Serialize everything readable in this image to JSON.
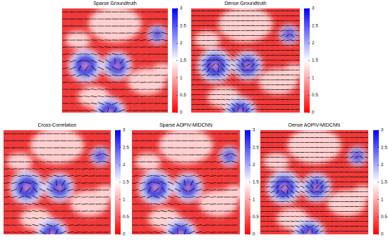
{
  "chart_data": [
    {
      "type": "heatmap",
      "title": "Sparse Groundtruth",
      "clim": [
        0,
        3
      ],
      "cticks": [
        0,
        0.5,
        1,
        1.5,
        2,
        2.5,
        3
      ]
    },
    {
      "type": "heatmap",
      "title": "Dense Groundtruth",
      "clim": [
        0,
        3
      ],
      "cticks": [
        0,
        0.5,
        1,
        1.5,
        2,
        2.5,
        3
      ]
    },
    {
      "type": "heatmap",
      "title": "Cross-Correlation",
      "clim": [
        0,
        3
      ],
      "cticks": [
        0,
        0.5,
        1,
        1.5,
        2,
        2.5,
        3
      ]
    },
    {
      "type": "heatmap",
      "title": "Sparse AOPIV-MIDCNN",
      "clim": [
        0,
        3
      ],
      "cticks": [
        0,
        0.5,
        1,
        1.5,
        2,
        2.5,
        3
      ]
    },
    {
      "type": "heatmap",
      "title": "Dense AOPIV-MIDCNN",
      "clim": [
        0,
        3
      ],
      "cticks": [
        0,
        0.5,
        1,
        1.5,
        2,
        2.5,
        3
      ]
    }
  ]
}
